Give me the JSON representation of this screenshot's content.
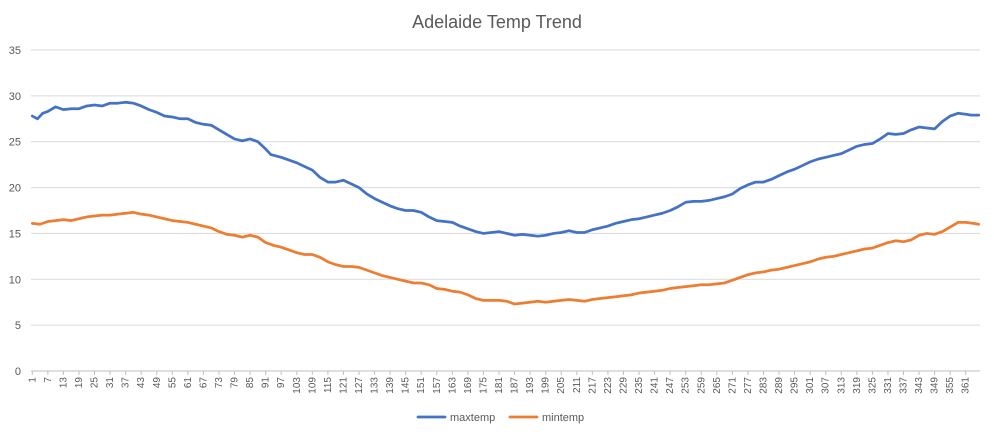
{
  "chart_data": {
    "type": "line",
    "title": "Adelaide Temp Trend",
    "xlabel": "",
    "ylabel": "",
    "x_range": [
      1,
      366
    ],
    "x_tick_labels": [
      "1",
      "7",
      "13",
      "19",
      "25",
      "31",
      "37",
      "43",
      "49",
      "55",
      "61",
      "67",
      "73",
      "79",
      "85",
      "91",
      "97",
      "103",
      "109",
      "115",
      "121",
      "127",
      "133",
      "139",
      "145",
      "151",
      "157",
      "163",
      "169",
      "175",
      "181",
      "187",
      "193",
      "199",
      "205",
      "211",
      "217",
      "223",
      "229",
      "235",
      "241",
      "247",
      "253",
      "259",
      "265",
      "271",
      "277",
      "283",
      "289",
      "295",
      "301",
      "307",
      "313",
      "319",
      "325",
      "331",
      "337",
      "343",
      "349",
      "355",
      "361"
    ],
    "ylim": [
      0,
      35
    ],
    "y_ticks": [
      0,
      5,
      10,
      15,
      20,
      25,
      30,
      35
    ],
    "grid": true,
    "legend_position": "bottom",
    "series": [
      {
        "name": "maxtemp",
        "color": "#4472c4",
        "points": [
          [
            1,
            27.8
          ],
          [
            3,
            27.5
          ],
          [
            5,
            28.1
          ],
          [
            7,
            28.3
          ],
          [
            10,
            28.8
          ],
          [
            13,
            28.5
          ],
          [
            16,
            28.6
          ],
          [
            19,
            28.6
          ],
          [
            22,
            28.9
          ],
          [
            25,
            29.0
          ],
          [
            28,
            28.9
          ],
          [
            31,
            29.2
          ],
          [
            34,
            29.2
          ],
          [
            37,
            29.3
          ],
          [
            40,
            29.2
          ],
          [
            43,
            28.9
          ],
          [
            46,
            28.5
          ],
          [
            49,
            28.2
          ],
          [
            52,
            27.8
          ],
          [
            55,
            27.7
          ],
          [
            58,
            27.5
          ],
          [
            61,
            27.5
          ],
          [
            64,
            27.1
          ],
          [
            67,
            26.9
          ],
          [
            70,
            26.8
          ],
          [
            73,
            26.3
          ],
          [
            76,
            25.8
          ],
          [
            79,
            25.3
          ],
          [
            82,
            25.1
          ],
          [
            85,
            25.3
          ],
          [
            88,
            25.0
          ],
          [
            91,
            24.2
          ],
          [
            93,
            23.6
          ],
          [
            97,
            23.3
          ],
          [
            100,
            23.0
          ],
          [
            103,
            22.7
          ],
          [
            106,
            22.3
          ],
          [
            109,
            21.9
          ],
          [
            112,
            21.1
          ],
          [
            115,
            20.6
          ],
          [
            118,
            20.6
          ],
          [
            121,
            20.8
          ],
          [
            124,
            20.4
          ],
          [
            127,
            20.0
          ],
          [
            130,
            19.3
          ],
          [
            133,
            18.8
          ],
          [
            136,
            18.4
          ],
          [
            139,
            18.0
          ],
          [
            142,
            17.7
          ],
          [
            145,
            17.5
          ],
          [
            148,
            17.5
          ],
          [
            151,
            17.3
          ],
          [
            154,
            16.8
          ],
          [
            157,
            16.4
          ],
          [
            160,
            16.3
          ],
          [
            163,
            16.2
          ],
          [
            166,
            15.8
          ],
          [
            169,
            15.5
          ],
          [
            172,
            15.2
          ],
          [
            175,
            15.0
          ],
          [
            178,
            15.1
          ],
          [
            181,
            15.2
          ],
          [
            184,
            15.0
          ],
          [
            187,
            14.8
          ],
          [
            190,
            14.9
          ],
          [
            193,
            14.8
          ],
          [
            196,
            14.7
          ],
          [
            199,
            14.8
          ],
          [
            202,
            15.0
          ],
          [
            205,
            15.1
          ],
          [
            208,
            15.3
          ],
          [
            211,
            15.1
          ],
          [
            214,
            15.1
          ],
          [
            217,
            15.4
          ],
          [
            220,
            15.6
          ],
          [
            223,
            15.8
          ],
          [
            226,
            16.1
          ],
          [
            229,
            16.3
          ],
          [
            232,
            16.5
          ],
          [
            235,
            16.6
          ],
          [
            238,
            16.8
          ],
          [
            241,
            17.0
          ],
          [
            244,
            17.2
          ],
          [
            247,
            17.5
          ],
          [
            250,
            17.9
          ],
          [
            253,
            18.4
          ],
          [
            256,
            18.5
          ],
          [
            259,
            18.5
          ],
          [
            262,
            18.6
          ],
          [
            265,
            18.8
          ],
          [
            268,
            19.0
          ],
          [
            271,
            19.3
          ],
          [
            274,
            19.9
          ],
          [
            277,
            20.3
          ],
          [
            280,
            20.6
          ],
          [
            283,
            20.6
          ],
          [
            286,
            20.9
          ],
          [
            289,
            21.3
          ],
          [
            292,
            21.7
          ],
          [
            295,
            22.0
          ],
          [
            298,
            22.4
          ],
          [
            301,
            22.8
          ],
          [
            304,
            23.1
          ],
          [
            307,
            23.3
          ],
          [
            310,
            23.5
          ],
          [
            313,
            23.7
          ],
          [
            316,
            24.1
          ],
          [
            319,
            24.5
          ],
          [
            322,
            24.7
          ],
          [
            325,
            24.8
          ],
          [
            328,
            25.3
          ],
          [
            331,
            25.9
          ],
          [
            334,
            25.8
          ],
          [
            337,
            25.9
          ],
          [
            340,
            26.3
          ],
          [
            343,
            26.6
          ],
          [
            346,
            26.5
          ],
          [
            349,
            26.4
          ],
          [
            352,
            27.2
          ],
          [
            355,
            27.8
          ],
          [
            358,
            28.1
          ],
          [
            361,
            28.0
          ],
          [
            363,
            27.9
          ],
          [
            366,
            27.9
          ]
        ]
      },
      {
        "name": "mintemp",
        "color": "#ed7d31",
        "points": [
          [
            1,
            16.1
          ],
          [
            4,
            16.0
          ],
          [
            7,
            16.3
          ],
          [
            10,
            16.4
          ],
          [
            13,
            16.5
          ],
          [
            16,
            16.4
          ],
          [
            19,
            16.6
          ],
          [
            22,
            16.8
          ],
          [
            25,
            16.9
          ],
          [
            28,
            17.0
          ],
          [
            31,
            17.0
          ],
          [
            34,
            17.1
          ],
          [
            37,
            17.2
          ],
          [
            40,
            17.3
          ],
          [
            43,
            17.1
          ],
          [
            46,
            17.0
          ],
          [
            49,
            16.8
          ],
          [
            52,
            16.6
          ],
          [
            55,
            16.4
          ],
          [
            58,
            16.3
          ],
          [
            61,
            16.2
          ],
          [
            64,
            16.0
          ],
          [
            67,
            15.8
          ],
          [
            70,
            15.6
          ],
          [
            73,
            15.2
          ],
          [
            76,
            14.9
          ],
          [
            79,
            14.8
          ],
          [
            82,
            14.6
          ],
          [
            85,
            14.8
          ],
          [
            88,
            14.6
          ],
          [
            91,
            14.0
          ],
          [
            94,
            13.7
          ],
          [
            97,
            13.5
          ],
          [
            100,
            13.2
          ],
          [
            103,
            12.9
          ],
          [
            106,
            12.7
          ],
          [
            109,
            12.7
          ],
          [
            112,
            12.4
          ],
          [
            115,
            11.9
          ],
          [
            118,
            11.6
          ],
          [
            121,
            11.4
          ],
          [
            124,
            11.4
          ],
          [
            127,
            11.3
          ],
          [
            130,
            11.0
          ],
          [
            133,
            10.7
          ],
          [
            136,
            10.4
          ],
          [
            139,
            10.2
          ],
          [
            142,
            10.0
          ],
          [
            145,
            9.8
          ],
          [
            148,
            9.6
          ],
          [
            151,
            9.6
          ],
          [
            154,
            9.4
          ],
          [
            157,
            9.0
          ],
          [
            160,
            8.9
          ],
          [
            163,
            8.7
          ],
          [
            166,
            8.6
          ],
          [
            169,
            8.3
          ],
          [
            172,
            7.9
          ],
          [
            175,
            7.7
          ],
          [
            178,
            7.7
          ],
          [
            181,
            7.7
          ],
          [
            184,
            7.6
          ],
          [
            187,
            7.3
          ],
          [
            190,
            7.4
          ],
          [
            193,
            7.5
          ],
          [
            196,
            7.6
          ],
          [
            199,
            7.5
          ],
          [
            202,
            7.6
          ],
          [
            205,
            7.7
          ],
          [
            208,
            7.8
          ],
          [
            211,
            7.7
          ],
          [
            214,
            7.6
          ],
          [
            217,
            7.8
          ],
          [
            220,
            7.9
          ],
          [
            223,
            8.0
          ],
          [
            226,
            8.1
          ],
          [
            229,
            8.2
          ],
          [
            232,
            8.3
          ],
          [
            235,
            8.5
          ],
          [
            238,
            8.6
          ],
          [
            241,
            8.7
          ],
          [
            244,
            8.8
          ],
          [
            247,
            9.0
          ],
          [
            250,
            9.1
          ],
          [
            253,
            9.2
          ],
          [
            256,
            9.3
          ],
          [
            259,
            9.4
          ],
          [
            262,
            9.4
          ],
          [
            265,
            9.5
          ],
          [
            268,
            9.6
          ],
          [
            271,
            9.9
          ],
          [
            274,
            10.2
          ],
          [
            277,
            10.5
          ],
          [
            280,
            10.7
          ],
          [
            283,
            10.8
          ],
          [
            286,
            11.0
          ],
          [
            289,
            11.1
          ],
          [
            292,
            11.3
          ],
          [
            295,
            11.5
          ],
          [
            298,
            11.7
          ],
          [
            301,
            11.9
          ],
          [
            304,
            12.2
          ],
          [
            307,
            12.4
          ],
          [
            310,
            12.5
          ],
          [
            313,
            12.7
          ],
          [
            316,
            12.9
          ],
          [
            319,
            13.1
          ],
          [
            322,
            13.3
          ],
          [
            325,
            13.4
          ],
          [
            328,
            13.7
          ],
          [
            331,
            14.0
          ],
          [
            334,
            14.2
          ],
          [
            337,
            14.1
          ],
          [
            340,
            14.3
          ],
          [
            343,
            14.8
          ],
          [
            346,
            15.0
          ],
          [
            349,
            14.9
          ],
          [
            352,
            15.2
          ],
          [
            355,
            15.7
          ],
          [
            358,
            16.2
          ],
          [
            361,
            16.2
          ],
          [
            364,
            16.1
          ],
          [
            366,
            16.0
          ]
        ]
      }
    ]
  }
}
